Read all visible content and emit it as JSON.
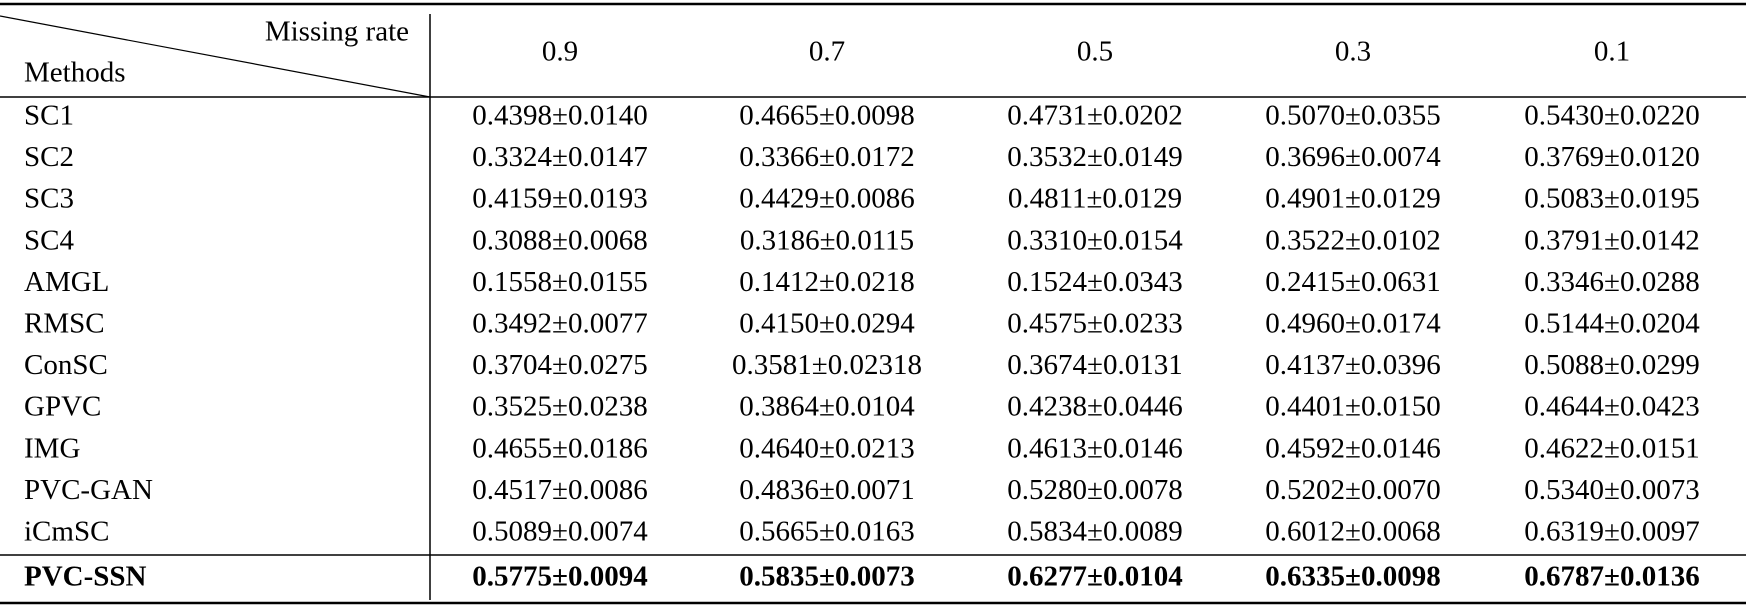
{
  "table": {
    "header": {
      "corner_top": "Missing rate",
      "corner_bottom": "Methods",
      "columns": [
        "0.9",
        "0.7",
        "0.5",
        "0.3",
        "0.1"
      ]
    },
    "rows": [
      {
        "method": "SC1",
        "values": [
          "0.4398±0.0140",
          "0.4665±0.0098",
          "0.4731±0.0202",
          "0.5070±0.0355",
          "0.5430±0.0220"
        ]
      },
      {
        "method": "SC2",
        "values": [
          "0.3324±0.0147",
          "0.3366±0.0172",
          "0.3532±0.0149",
          "0.3696±0.0074",
          "0.3769±0.0120"
        ]
      },
      {
        "method": "SC3",
        "values": [
          "0.4159±0.0193",
          "0.4429±0.0086",
          "0.4811±0.0129",
          "0.4901±0.0129",
          "0.5083±0.0195"
        ]
      },
      {
        "method": "SC4",
        "values": [
          "0.3088±0.0068",
          "0.3186±0.0115",
          "0.3310±0.0154",
          "0.3522±0.0102",
          "0.3791±0.0142"
        ]
      },
      {
        "method": "AMGL",
        "values": [
          "0.1558±0.0155",
          "0.1412±0.0218",
          "0.1524±0.0343",
          "0.2415±0.0631",
          "0.3346±0.0288"
        ]
      },
      {
        "method": "RMSC",
        "values": [
          "0.3492±0.0077",
          "0.4150±0.0294",
          "0.4575±0.0233",
          "0.4960±0.0174",
          "0.5144±0.0204"
        ]
      },
      {
        "method": "ConSC",
        "values": [
          "0.3704±0.0275",
          "0.3581±0.02318",
          "0.3674±0.0131",
          "0.4137±0.0396",
          "0.5088±0.0299"
        ]
      },
      {
        "method": "GPVC",
        "values": [
          "0.3525±0.0238",
          "0.3864±0.0104",
          "0.4238±0.0446",
          "0.4401±0.0150",
          "0.4644±0.0423"
        ]
      },
      {
        "method": "IMG",
        "values": [
          "0.4655±0.0186",
          "0.4640±0.0213",
          "0.4613±0.0146",
          "0.4592±0.0146",
          "0.4622±0.0151"
        ]
      },
      {
        "method": "PVC-GAN",
        "values": [
          "0.4517±0.0086",
          "0.4836±0.0071",
          "0.5280±0.0078",
          "0.5202±0.0070",
          "0.5340±0.0073"
        ]
      },
      {
        "method": "iCmSC",
        "values": [
          "0.5089±0.0074",
          "0.5665±0.0163",
          "0.5834±0.0089",
          "0.6012±0.0068",
          "0.6319±0.0097"
        ]
      },
      {
        "method": "PVC-SSN",
        "values": [
          "0.5775±0.0094",
          "0.5835±0.0073",
          "0.6277±0.0104",
          "0.6335±0.0098",
          "0.6787±0.0136"
        ]
      }
    ]
  }
}
